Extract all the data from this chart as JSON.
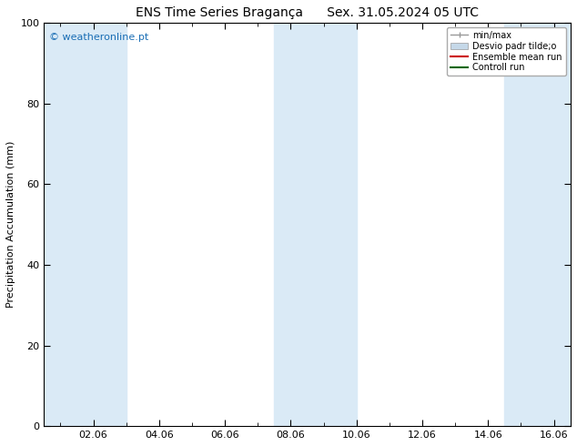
{
  "title_left": "ENS Time Series Bragança",
  "title_right": "Sex. 31.05.2024 05 UTC",
  "ylabel": "Precipitation Accumulation (mm)",
  "watermark": "© weatheronline.pt",
  "ylim": [
    0,
    100
  ],
  "yticks": [
    0,
    20,
    40,
    60,
    80,
    100
  ],
  "xtick_labels": [
    "02.06",
    "04.06",
    "06.06",
    "08.06",
    "10.06",
    "12.06",
    "14.06",
    "16.06"
  ],
  "xtick_positions": [
    2,
    4,
    6,
    8,
    10,
    12,
    14,
    16
  ],
  "xmin": 0.5,
  "xmax": 16.5,
  "shade_bands": [
    [
      0.5,
      1.5
    ],
    [
      1.5,
      3.0
    ],
    [
      7.5,
      10.0
    ],
    [
      14.5,
      16.5
    ]
  ],
  "shade_color": "#daeaf6",
  "background_color": "#ffffff",
  "plot_bg_color": "#ffffff",
  "legend_entries": [
    "min/max",
    "Desvio padr tilde;o",
    "Ensemble mean run",
    "Controll run"
  ],
  "legend_colors_line": [
    "#8888aa",
    "#c5d8e8",
    "#cc0000",
    "#006600"
  ],
  "title_fontsize": 10,
  "label_fontsize": 8,
  "tick_fontsize": 8,
  "watermark_fontsize": 8,
  "watermark_color": "#1a6eb5"
}
